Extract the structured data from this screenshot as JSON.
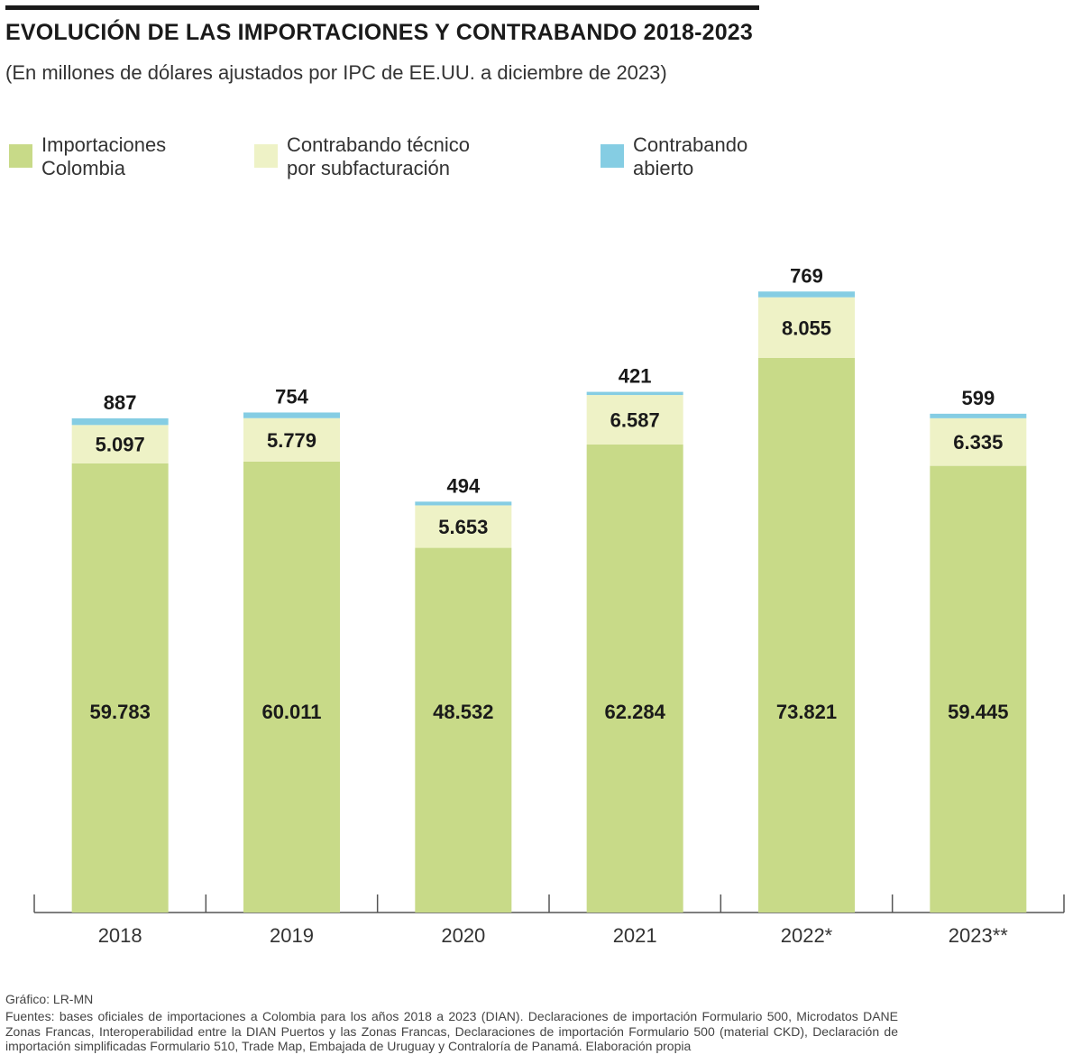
{
  "header": {
    "title": "EVOLUCIÓN DE LAS IMPORTACIONES Y CONTRABANDO 2018-2023",
    "subtitle": "(En millones de dólares ajustados por IPC de EE.UU. a diciembre de 2023)"
  },
  "legend": [
    {
      "label": "Importaciones\nColombia",
      "color": "#c8da88"
    },
    {
      "label": "Contrabando técnico\npor subfacturación",
      "color": "#eef2c6"
    },
    {
      "label": "Contrabando\nabierto",
      "color": "#85cde3"
    }
  ],
  "chart_data": {
    "type": "bar",
    "stacked": true,
    "categories": [
      "2018",
      "2019",
      "2020",
      "2021",
      "2022*",
      "2023**"
    ],
    "series": [
      {
        "name": "Importaciones Colombia",
        "color": "#c8da88",
        "values": [
          59783,
          60011,
          48532,
          62284,
          73821,
          59445
        ],
        "labels": [
          "59.783",
          "60.011",
          "48.532",
          "62.284",
          "73.821",
          "59.445"
        ]
      },
      {
        "name": "Contrabando técnico por subfacturación",
        "color": "#eef2c6",
        "values": [
          5097,
          5779,
          5653,
          6587,
          8055,
          6335
        ],
        "labels": [
          "5.097",
          "5.779",
          "5.653",
          "6.587",
          "8.055",
          "6.335"
        ]
      },
      {
        "name": "Contrabando abierto",
        "color": "#85cde3",
        "values": [
          887,
          754,
          494,
          421,
          769,
          599
        ],
        "labels": [
          "887",
          "754",
          "494",
          "421",
          "769",
          "599"
        ]
      }
    ],
    "title": "EVOLUCIÓN DE LAS IMPORTACIONES Y CONTRABANDO 2018-2023",
    "subtitle": "(En millones de dólares ajustados por IPC de EE.UU. a diciembre de 2023)",
    "xlabel": "",
    "ylabel": "",
    "ylim": [
      0,
      84000
    ],
    "grid": false,
    "legend_position": "top"
  },
  "footer": {
    "credit": "Gráfico: LR-MN",
    "sources": "Fuentes: bases oficiales de importaciones a Colombia para los años 2018 a 2023 (DIAN). Declaraciones de importación Formulario 500, Microdatos DANE Zonas Francas, Interoperabilidad entre la DIAN Puertos y las Zonas Francas, Declaraciones de importación Formulario 500 (material CKD), Declaración de importación simplificadas Formulario 510, Trade Map, Embajada de Uruguay y Contraloría de Panamá. Elaboración propia"
  }
}
